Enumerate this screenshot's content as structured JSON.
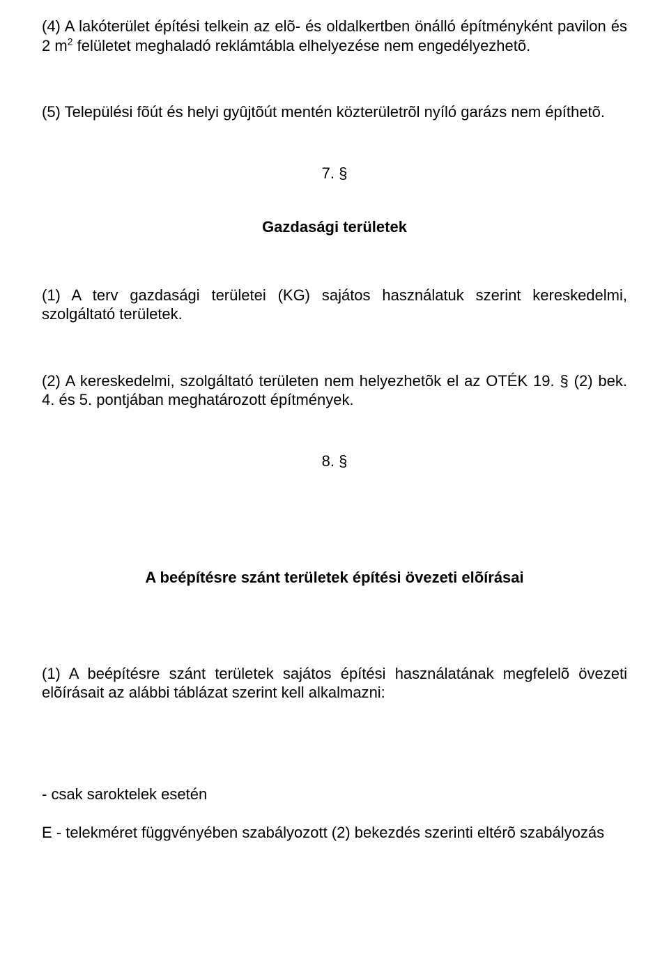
{
  "doc": {
    "p4_a": "(4)  A lakóterület  építési telkein az elõ- és oldalkertben önálló építményként pavilon és 2 m",
    "p4_sup": "2",
    "p4_b": " felületet meghaladó reklámtábla elhelyezése nem engedélyezhetõ.",
    "p5": "(5)  Települési fõút és helyi gyûjtõút mentén közterületrõl nyíló garázs nem építhetõ.",
    "s7_num": "7. §",
    "s7_title": "Gazdasági területek",
    "s7_p1": "(1)   A   terv  gazdasági  területei  (KG)  sajátos  használatuk  szerint  kereskedelmi, szolgáltató területek.",
    "s7_p2": "(2)  A kereskedelmi, szolgáltató területen nem helyezhetõk el az OTÉK 19. § (2) bek. 4. és 5. pontjában meghatározott építmények.",
    "s8_num": "8. §",
    "s8_title": "A beépítésre szánt területek építési övezeti elõírásai",
    "s8_p1": "(1)  A beépítésre  szánt  területek  sajátos építési használatának megfelelõ övezeti elõírásait  az alábbi táblázat szerint kell alkalmazni:",
    "note1": "- csak saroktelek esetén",
    "note2": "E - telekméret függvényében szabályozott (2) bekezdés szerinti eltérõ szabályozás"
  }
}
